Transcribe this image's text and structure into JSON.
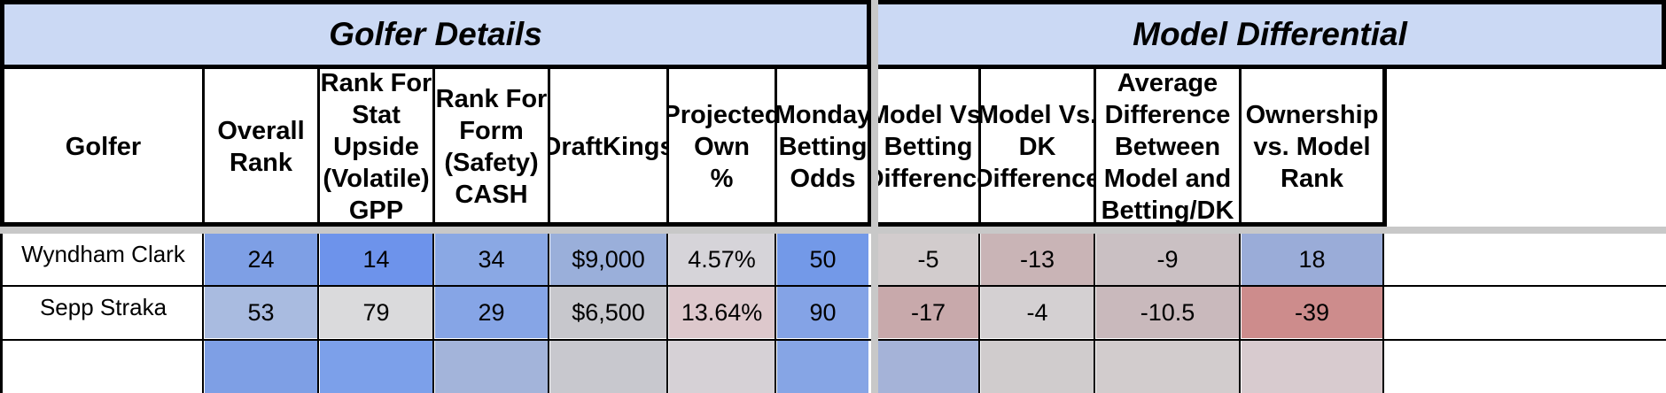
{
  "sections": {
    "golfer_details": "Golfer Details",
    "model_differential": "Model Differential"
  },
  "columns": [
    "Golfer",
    "Overall\nRank",
    "Rank For\nStat\nUpside\n(Volatile)\nGPP",
    "Rank For\nForm\n(Safety)\nCASH",
    "DraftKings",
    "Projected\nOwn\n%",
    "Monday\nBetting\nOdds",
    "Model Vs.\nBetting\nDifference",
    "Model Vs.\nDK\nDifference",
    "Average\nDifference\nBetween\nModel and\nBetting/DK",
    "Ownership\nvs. Model\nRank"
  ],
  "rows": [
    {
      "cells": [
        "Wyndham Clark",
        "24",
        "14",
        "34",
        "$9,000",
        "4.57%",
        "50",
        "-5",
        "-13",
        "-9",
        "18"
      ],
      "colors": [
        "#ffffff",
        "#7e9fe5",
        "#6d93eb",
        "#8aa8e4",
        "#9aafda",
        "#d6d4d9",
        "#7399e8",
        "#d2cccd",
        "#c9b4b6",
        "#cac0c3",
        "#9aacd8"
      ]
    },
    {
      "cells": [
        "Sepp Straka",
        "53",
        "79",
        "29",
        "$6,500",
        "13.64%",
        "90",
        "-17",
        "-4",
        "-10.5",
        "-39"
      ],
      "colors": [
        "#ffffff",
        "#a9bbe0",
        "#dadadc",
        "#86a5e6",
        "#c7c7cc",
        "#ddc8cc",
        "#84a3e6",
        "#c8a9ab",
        "#d4d0d2",
        "#c9b9bc",
        "#cd8c8c"
      ]
    }
  ],
  "partial_row_colors": [
    "#ffffff",
    "#7e9fe5",
    "#7ca0ea",
    "#a3b4da",
    "#c8c8ce",
    "#d6d1d6",
    "#86a5e5",
    "#a5b3d8",
    "#d0cccd",
    "#d2cccd",
    "#d8cbcf"
  ]
}
